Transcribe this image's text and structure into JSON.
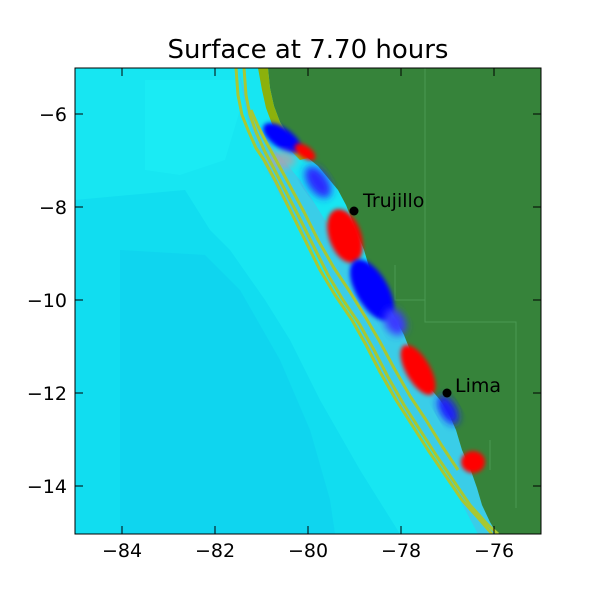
{
  "title": "Surface at 7.70 hours",
  "colors": {
    "ocean": "#17e6f2",
    "ocean_deep": "#10d6f0",
    "land": "#36833a",
    "land_edge": "#7fb40b",
    "contour": "#a8c832",
    "wave_positive": "#ff0000",
    "wave_negative": "#0000ff",
    "city_marker": "#000000",
    "frame": "#000000"
  },
  "axes": {
    "x_ticks": [
      "−84",
      "−82",
      "−80",
      "−78",
      "−76"
    ],
    "y_ticks": [
      "−6",
      "−8",
      "−10",
      "−12",
      "−14"
    ],
    "x_range": [
      -85,
      -75
    ],
    "y_range": [
      -15,
      -5
    ]
  },
  "cities": [
    {
      "name": "Trujillo",
      "lon": -79.0,
      "lat": -8.1
    },
    {
      "name": "Lima",
      "lon": -77.0,
      "lat": -12.0
    }
  ]
}
